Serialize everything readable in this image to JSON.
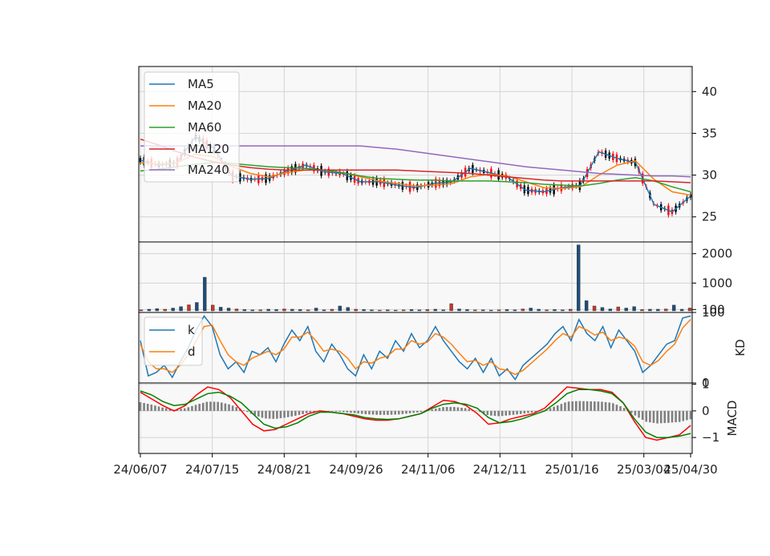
{
  "chart_data": {
    "type": "line",
    "x_tick_labels": [
      "24/06/07",
      "24/07/15",
      "24/08/21",
      "24/09/26",
      "24/11/06",
      "24/12/11",
      "25/01/16",
      "25/03/04",
      "25/04/30"
    ],
    "panels": [
      {
        "id": "price",
        "type": "candlestick",
        "ylim": [
          22,
          43
        ],
        "y_ticks": [
          "25",
          "30",
          "35",
          "40"
        ],
        "grid": true,
        "legend_position": "top-left",
        "series": [
          {
            "name": "MA5",
            "color": "#1f77b4",
            "values": [
              31.8,
              31.2,
              31.5,
              34.6,
              33.2,
              29.9,
              29.5,
              29.6,
              30.5,
              31.2,
              30.4,
              30.2,
              29.2,
              29.2,
              28.8,
              28.5,
              29.0,
              29.2,
              30.8,
              30.3,
              29.8,
              28.2,
              28.0,
              28.5,
              28.8,
              32.8,
              32.0,
              31.5,
              26.5,
              25.6,
              27.5
            ]
          },
          {
            "name": "MA20",
            "color": "#ff7f0e",
            "values": [
              31.5,
              31.3,
              31.5,
              32.5,
              32.2,
              31.0,
              30.2,
              29.8,
              30.3,
              30.6,
              30.6,
              30.3,
              29.8,
              29.3,
              29.0,
              28.7,
              28.8,
              29.0,
              29.8,
              30.1,
              29.9,
              29.2,
              28.5,
              28.4,
              28.6,
              30.0,
              31.2,
              31.7,
              29.5,
              28.0,
              27.6
            ]
          },
          {
            "name": "MA60",
            "color": "#2ca02c",
            "values": [
              30.5,
              30.7,
              31.0,
              31.3,
              31.5,
              31.4,
              31.2,
              31.0,
              30.9,
              30.8,
              30.6,
              30.3,
              29.9,
              29.6,
              29.5,
              29.4,
              29.4,
              29.3,
              29.3,
              29.3,
              29.2,
              29.1,
              28.9,
              28.8,
              28.7,
              29.0,
              29.4,
              29.7,
              29.3,
              28.6,
              28.0
            ]
          },
          {
            "name": "MA120",
            "color": "#d62728",
            "values": [
              34.3,
              33.6,
              32.8,
              32.1,
              31.6,
              31.2,
              30.9,
              30.7,
              30.6,
              30.6,
              30.6,
              30.6,
              30.6,
              30.6,
              30.6,
              30.5,
              30.4,
              30.3,
              30.2,
              30.0,
              29.8,
              29.6,
              29.4,
              29.3,
              29.3,
              29.3,
              29.3,
              29.3,
              29.3,
              29.2,
              29.1
            ]
          },
          {
            "name": "MA240",
            "color": "#9467bd",
            "values": [
              33.5,
              33.5,
              33.5,
              33.5,
              33.5,
              33.5,
              33.5,
              33.5,
              33.5,
              33.5,
              33.5,
              33.5,
              33.5,
              33.3,
              33.1,
              32.8,
              32.5,
              32.2,
              31.9,
              31.6,
              31.3,
              31.0,
              30.8,
              30.6,
              30.4,
              30.2,
              30.1,
              30.0,
              29.9,
              29.9,
              29.8
            ]
          }
        ],
        "up_color": "#ff0000",
        "down_color": "#000000"
      },
      {
        "id": "volume",
        "type": "bar",
        "ylim": [
          0,
          2400
        ],
        "y_ticks": [
          "100",
          "1000",
          "2000"
        ],
        "grid": true,
        "values": [
          90,
          110,
          130,
          110,
          150,
          200,
          260,
          340,
          1200,
          250,
          180,
          150,
          120,
          100,
          90,
          90,
          110,
          100,
          120,
          110,
          100,
          90,
          150,
          90,
          110,
          220,
          170,
          110,
          100,
          90,
          80,
          90,
          80,
          90,
          100,
          90,
          100,
          110,
          90,
          300,
          120,
          100,
          90,
          90,
          80,
          90,
          100,
          90,
          120,
          150,
          110,
          90,
          100,
          90,
          110,
          2300,
          400,
          220,
          170,
          120,
          190,
          150,
          200,
          100,
          110,
          110,
          120,
          250,
          110,
          150
        ]
      },
      {
        "id": "kd",
        "type": "line",
        "ylabel": "KD",
        "ylim": [
          0,
          100
        ],
        "y_ticks": [
          "0",
          "100"
        ],
        "grid": true,
        "legend_position": "top-left",
        "series": [
          {
            "name": "k",
            "color": "#1f77b4",
            "values": [
              60,
              10,
              15,
              25,
              8,
              30,
              50,
              75,
              95,
              80,
              40,
              20,
              30,
              15,
              45,
              40,
              50,
              30,
              55,
              75,
              60,
              80,
              45,
              30,
              55,
              40,
              20,
              10,
              40,
              20,
              45,
              35,
              60,
              45,
              70,
              50,
              60,
              80,
              60,
              45,
              30,
              20,
              35,
              15,
              35,
              10,
              20,
              5,
              25,
              35,
              45,
              55,
              70,
              80,
              60,
              90,
              70,
              60,
              80,
              50,
              75,
              60,
              45,
              15,
              25,
              40,
              55,
              60,
              92,
              95
            ]
          },
          {
            "name": "d",
            "color": "#ff7f0e",
            "values": [
              55,
              30,
              20,
              20,
              15,
              25,
              40,
              60,
              80,
              82,
              60,
              40,
              30,
              25,
              35,
              40,
              45,
              40,
              48,
              65,
              65,
              72,
              60,
              45,
              48,
              45,
              35,
              20,
              30,
              28,
              35,
              38,
              48,
              48,
              60,
              55,
              58,
              70,
              65,
              55,
              42,
              30,
              32,
              25,
              30,
              20,
              18,
              12,
              18,
              28,
              38,
              48,
              60,
              70,
              65,
              80,
              75,
              68,
              72,
              60,
              65,
              62,
              52,
              30,
              25,
              32,
              45,
              55,
              78,
              90
            ]
          }
        ]
      },
      {
        "id": "macd",
        "type": "line",
        "ylabel": "MACD",
        "ylim": [
          -1.6,
          1.05
        ],
        "y_ticks": [
          "−1",
          "0",
          "1"
        ],
        "grid": true,
        "series": [
          {
            "name": "",
            "color": "#ff0000",
            "values": [
              0.7,
              0.45,
              0.2,
              0.0,
              0.2,
              0.6,
              0.9,
              0.8,
              0.5,
              0.0,
              -0.5,
              -0.75,
              -0.7,
              -0.5,
              -0.3,
              -0.1,
              0.0,
              -0.05,
              -0.1,
              -0.2,
              -0.3,
              -0.35,
              -0.35,
              -0.3,
              -0.2,
              -0.1,
              0.15,
              0.4,
              0.35,
              0.2,
              -0.1,
              -0.5,
              -0.45,
              -0.3,
              -0.2,
              -0.1,
              0.1,
              0.5,
              0.9,
              0.85,
              0.8,
              0.8,
              0.7,
              0.3,
              -0.4,
              -1.0,
              -1.1,
              -1.0,
              -0.9,
              -0.55
            ]
          },
          {
            "name": "",
            "color": "#008000",
            "values": [
              0.75,
              0.6,
              0.35,
              0.2,
              0.25,
              0.45,
              0.65,
              0.7,
              0.55,
              0.3,
              -0.1,
              -0.5,
              -0.65,
              -0.6,
              -0.45,
              -0.2,
              -0.05,
              -0.05,
              -0.1,
              -0.15,
              -0.25,
              -0.3,
              -0.32,
              -0.3,
              -0.2,
              -0.1,
              0.1,
              0.25,
              0.3,
              0.25,
              0.1,
              -0.25,
              -0.45,
              -0.4,
              -0.3,
              -0.15,
              0.0,
              0.3,
              0.65,
              0.8,
              0.8,
              0.75,
              0.65,
              0.3,
              -0.3,
              -0.8,
              -1.0,
              -1.0,
              -0.95,
              -0.85
            ]
          }
        ],
        "histogram_color": "#808080"
      }
    ]
  }
}
